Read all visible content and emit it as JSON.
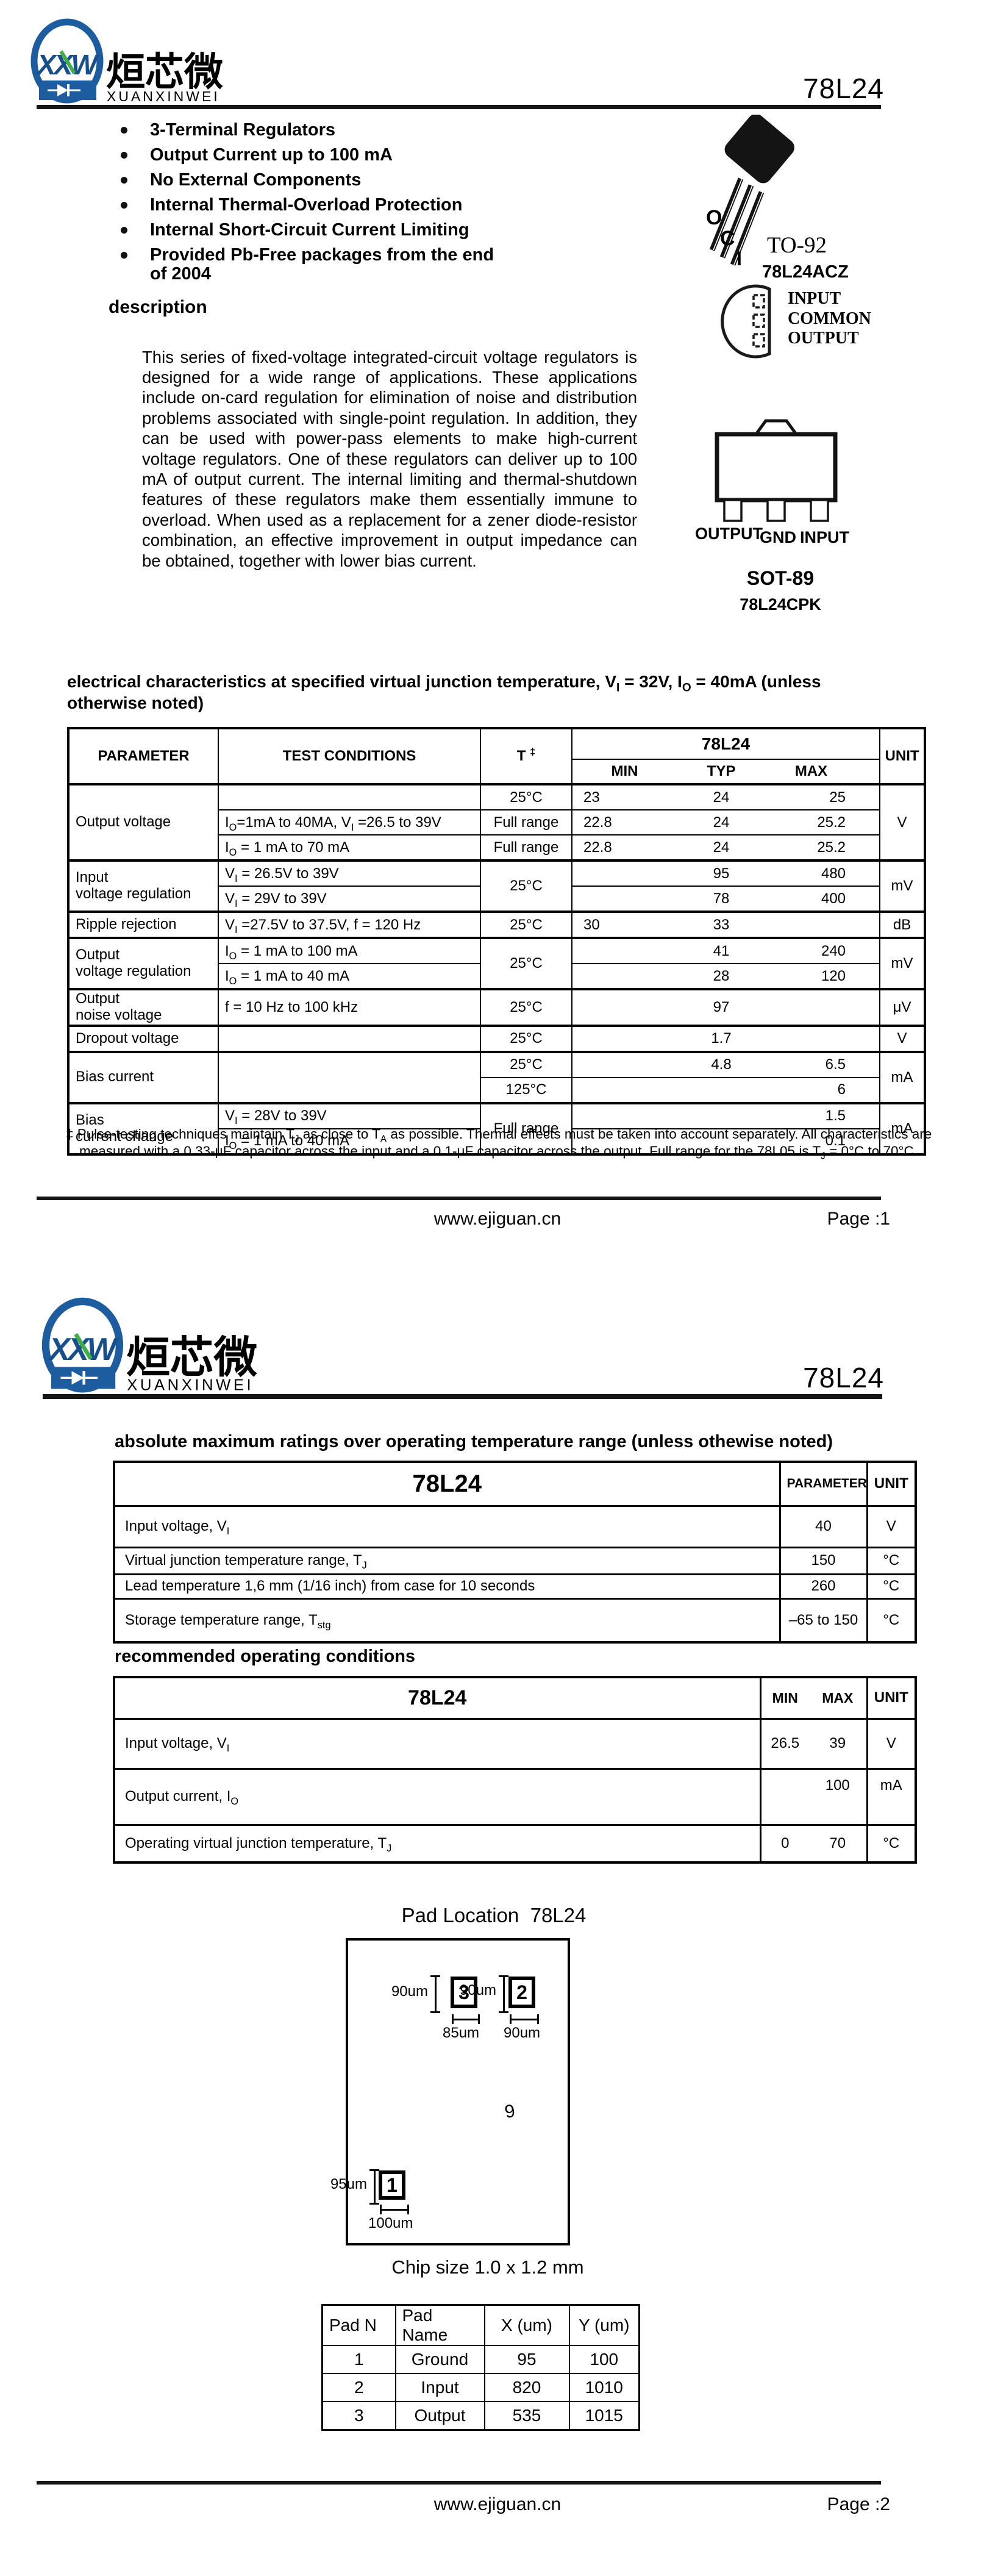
{
  "header": {
    "logo_acronym": "XXW",
    "logo_cn": "烜芯微",
    "logo_en": "XUANXINWEI",
    "part_number": "78L24"
  },
  "page1": {
    "features": [
      "3-Terminal Regulators",
      "Output Current up to 100 mA",
      "No External Components",
      "Internal Thermal-Overload Protection",
      "Internal Short-Circuit Current Limiting",
      "Provided Pb-Free packages from the end of 2004"
    ],
    "description_heading": "description",
    "description_text": "This series of fixed-voltage integrated-circuit voltage regulators is designed for a wide range of applications. These applications include on-card regulation for elimination of noise and distribution problems associated with single-point regulation. In addition, they can be used with power-pass elements to make high-current voltage regulators. One of these regulators can deliver up to 100 mA of output current. The internal limiting and thermal-shutdown features of these regulators make them essentially immune to overload. When used as a replacement for a zener diode-resistor combination, an effective improvement in output impedance can be obtained, together with lower bias current.",
    "to92": {
      "pin_labels": [
        "O",
        "C",
        "I"
      ],
      "package_name": "TO-92",
      "device_name": "78L24ACZ",
      "pinout_labels": [
        "INPUT",
        "COMMON",
        "OUTPUT"
      ]
    },
    "sot89": {
      "lead_labels": [
        "OUTPUT",
        "GND",
        "INPUT"
      ],
      "package_name": "SOT-89",
      "device_name": "78L24CPK"
    },
    "elec": {
      "heading": "electrical characteristics at specified virtual junction temperature, V~I~ = 32V, I~O~ = 40mA (unless otherwise noted)",
      "columns": {
        "parameter": "PARAMETER",
        "conditions": "TEST CONDITIONS",
        "t": "T ^‡^",
        "part": "78L24",
        "min": "MIN",
        "typ": "TYP",
        "max": "MAX",
        "unit": "UNIT"
      },
      "groups": [
        {
          "parameter": "Output voltage",
          "unit": "V",
          "rows": [
            {
              "cond": "",
              "t": "25°C",
              "min": "23",
              "typ": "24",
              "max": "25"
            },
            {
              "cond": "I~O~=1mA to 40MA, V~I~ =26.5 to 39V",
              "t": "Full range",
              "min": "22.8",
              "typ": "24",
              "max": "25.2"
            },
            {
              "cond": "I~O~ = 1 mA to 70 mA",
              "t": "Full range",
              "min": "22.8",
              "typ": "24",
              "max": "25.2"
            }
          ]
        },
        {
          "parameter": "Input\nvoltage regulation",
          "unit": "mV",
          "t": "25°C",
          "rows": [
            {
              "cond": "V~I~ = 26.5V to 39V",
              "typ": "95",
              "max": "480"
            },
            {
              "cond": "V~I~ = 29V to 39V",
              "typ": "78",
              "max": "400"
            }
          ]
        },
        {
          "parameter": "Ripple rejection",
          "unit": "dB",
          "rows": [
            {
              "cond": "V~I~ =27.5V to 37.5V, f = 120 Hz",
              "t": "25°C",
              "min": "30",
              "typ": "33"
            }
          ]
        },
        {
          "parameter": "Output\nvoltage regulation",
          "unit": "mV",
          "t": "25°C",
          "rows": [
            {
              "cond": "I~O~ = 1 mA to 100 mA",
              "typ": "41",
              "max": "240"
            },
            {
              "cond": "I~O~ = 1 mA to 40 mA",
              "typ": "28",
              "max": "120"
            }
          ]
        },
        {
          "parameter": "Output\nnoise voltage",
          "unit": "μV",
          "rows": [
            {
              "cond": "f = 10 Hz to 100 kHz",
              "t": "25°C",
              "typ": "97"
            }
          ]
        },
        {
          "parameter": "Dropout voltage",
          "unit": "V",
          "rows": [
            {
              "cond": "",
              "t": "25°C",
              "typ": "1.7"
            }
          ]
        },
        {
          "parameter": "Bias current",
          "unit": "mA",
          "rows": [
            {
              "cond": "",
              "t": "25°C",
              "typ": "4.8",
              "max": "6.5"
            },
            {
              "cond": "",
              "t": "125°C",
              "max": "6"
            }
          ]
        },
        {
          "parameter": "Bias\ncurrent change",
          "unit": "mA",
          "t": "Full range",
          "rows": [
            {
              "cond": "V~I~ = 28V to 39V",
              "max": "1.5"
            },
            {
              "cond": "I~O~ = 1 mA to 40 mA",
              "max": "0.1"
            }
          ]
        }
      ],
      "footnote": "‡ Pulse-testing techniques maintain T~J~ as close to T~A~ as possible. Thermal effects must be taken into account separately. All characteristics are measured with a 0.33-μF capacitor across the input and a 0.1-μF capacitor across the output. Full range for the 78L05 is T~J~ = 0°C to 70°C"
    },
    "footer": {
      "url": "www.ejiguan.cn",
      "page": "Page :1"
    }
  },
  "page2": {
    "abs": {
      "heading": "absolute maximum ratings over operating temperature range (unless othewise noted)",
      "columns": {
        "part": "78L24",
        "parameter": "PARAMETER",
        "unit": "UNIT"
      },
      "rows": [
        {
          "label": "Input voltage, V~I~",
          "value": "40",
          "unit": "V"
        },
        {
          "label": "Virtual junction temperature range, T~J~",
          "value": "150",
          "unit": "°C"
        },
        {
          "label": "Lead temperature 1,6 mm (1/16 inch) from case for 10 seconds",
          "value": "260",
          "unit": "°C"
        },
        {
          "label": "Storage temperature range, T~stg~",
          "value": "–65 to 150",
          "unit": "°C"
        }
      ]
    },
    "rec": {
      "heading": "recommended operating conditions",
      "columns": {
        "part": "78L24",
        "min": "MIN",
        "max": "MAX",
        "unit": "UNIT"
      },
      "rows": [
        {
          "label": "Input voltage, V~I~",
          "min": "26.5",
          "max": "39",
          "unit": "V"
        },
        {
          "label": "Output current, I~O~",
          "min": "",
          "max": "100",
          "unit": "mA"
        },
        {
          "label": "Operating virtual junction temperature, T~J~",
          "min": "0",
          "max": "70",
          "unit": "°C"
        }
      ]
    },
    "pad": {
      "title": "Pad Location  78L24",
      "chip_size": "Chip size 1.0 x 1.2 mm",
      "die_mark": "9",
      "pad1": {
        "num": "1",
        "height": "95um",
        "width": "100um"
      },
      "pad2": {
        "num": "2",
        "height": "90um",
        "width": "90um"
      },
      "pad3": {
        "num": "3",
        "height": "90um",
        "width": "85um"
      },
      "table": {
        "headers": [
          "Pad N",
          "Pad Name",
          "X (um)",
          "Y (um)"
        ],
        "rows": [
          [
            "1",
            "Ground",
            "95",
            "100"
          ],
          [
            "2",
            "Input",
            "820",
            "1010"
          ],
          [
            "3",
            "Output",
            "535",
            "1015"
          ]
        ]
      }
    },
    "footer": {
      "url": "www.ejiguan.cn",
      "page": "Page :2"
    }
  }
}
